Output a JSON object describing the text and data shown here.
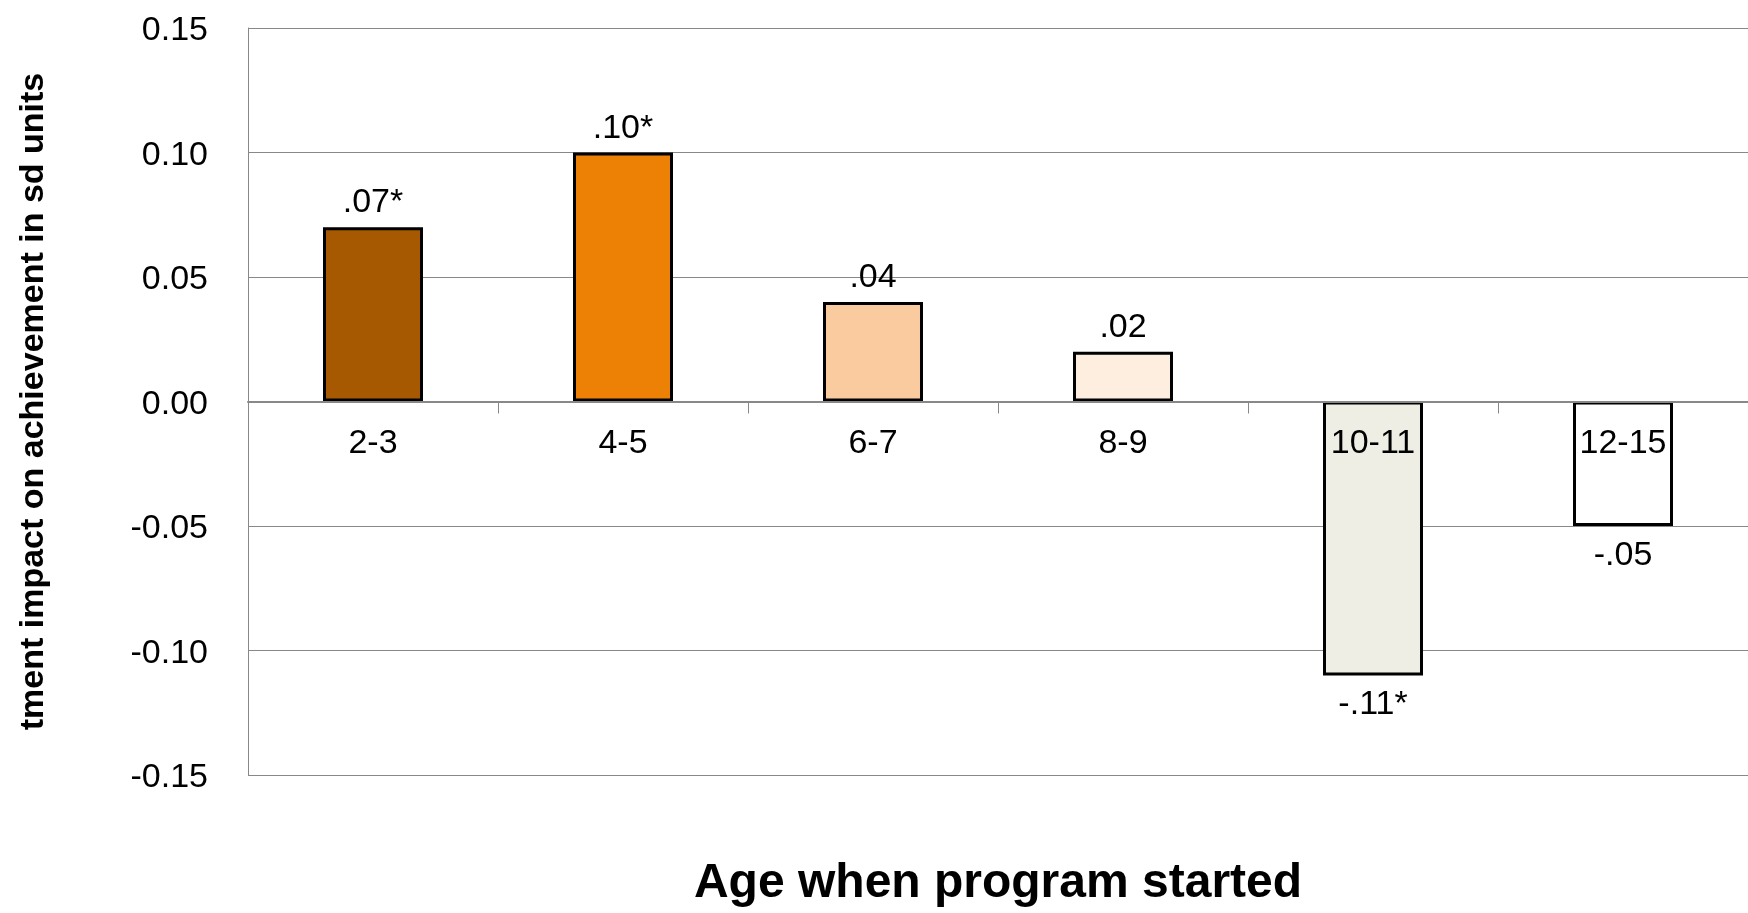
{
  "chart_data": {
    "type": "bar",
    "xlabel": "Age when program started",
    "ylabel": "tment impact on achievement in sd units",
    "categories": [
      "2-3",
      "4-5",
      "6-7",
      "8-9",
      "10-11",
      "12-15"
    ],
    "values": [
      0.07,
      0.1,
      0.04,
      0.02,
      -0.11,
      -0.05
    ],
    "colors": [
      "#a65900",
      "#ed8106",
      "#fbcba0",
      "#fdeee0",
      "#eeeee4",
      "#ffffff"
    ],
    "value_labels": [
      ".07*",
      ".10*",
      ".04",
      ".02",
      "-.11*",
      "-.05"
    ],
    "ylim": [
      -0.15,
      0.15
    ],
    "yticks": [
      {
        "value": -0.15,
        "label": "-0.15"
      },
      {
        "value": -0.1,
        "label": "-0.10"
      },
      {
        "value": -0.05,
        "label": "-0.05"
      },
      {
        "value": 0,
        "label": "0.00"
      },
      {
        "value": 0.05,
        "label": "0.05"
      },
      {
        "value": 0.1,
        "label": "0.10"
      },
      {
        "value": 0.15,
        "label": "0.15"
      }
    ],
    "grid": "y"
  }
}
